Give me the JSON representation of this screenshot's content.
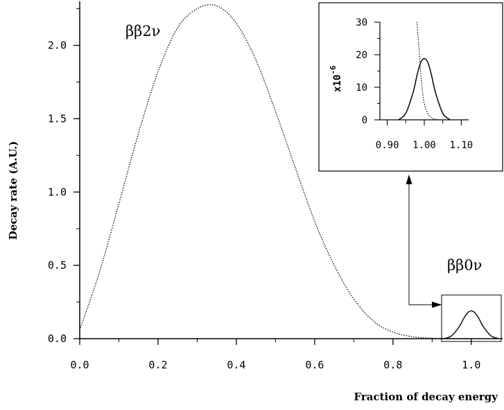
{
  "chart_data": {
    "type": "line",
    "xlabel": "Fraction of decay energy",
    "ylabel": "Decay rate (A.U.)",
    "xlim": [
      0.0,
      1.08
    ],
    "ylim": [
      0.0,
      2.3
    ],
    "x_ticks": [
      0.0,
      0.2,
      0.4,
      0.6,
      0.8,
      1.0
    ],
    "x_tick_labels": [
      "0.0",
      "0.2",
      "0.4",
      "0.6",
      "0.8",
      "1.0"
    ],
    "y_ticks": [
      0.0,
      0.5,
      1.0,
      1.5,
      2.0
    ],
    "y_tick_labels": [
      "0.0",
      "0.5",
      "1.0",
      "1.5",
      "2.0"
    ],
    "grid": false,
    "annotations": [
      "ββ2ν",
      "ββ0ν"
    ],
    "series": [
      {
        "name": "ββ2ν",
        "style": "dotted",
        "x": [
          0.0,
          0.05,
          0.1,
          0.15,
          0.2,
          0.25,
          0.3,
          0.35,
          0.4,
          0.45,
          0.5,
          0.55,
          0.6,
          0.65,
          0.7,
          0.75,
          0.8,
          0.85,
          0.9,
          0.95,
          1.0
        ],
        "y": [
          0.06,
          0.45,
          0.92,
          1.4,
          1.82,
          2.12,
          2.25,
          2.27,
          2.15,
          1.9,
          1.55,
          1.17,
          0.8,
          0.5,
          0.27,
          0.12,
          0.045,
          0.013,
          0.003,
          0.001,
          0.0
        ]
      },
      {
        "name": "ββ0ν",
        "style": "solid",
        "x": [
          0.93,
          0.95,
          0.97,
          0.98,
          0.99,
          1.0,
          1.01,
          1.02,
          1.03,
          1.05,
          1.07
        ],
        "y": [
          0.0,
          0.02,
          0.085,
          0.135,
          0.175,
          0.19,
          0.175,
          0.135,
          0.085,
          0.02,
          0.0
        ]
      }
    ],
    "inset": {
      "xlim": [
        0.88,
        1.12
      ],
      "ylim": [
        0,
        30
      ],
      "x_ticks": [
        0.9,
        1.0,
        1.1
      ],
      "x_tick_labels": [
        "0.90",
        "1.00",
        "1.10"
      ],
      "y_ticks": [
        0,
        10,
        20,
        30
      ],
      "y_tick_labels": [
        "0",
        "10",
        "20",
        "30"
      ],
      "ylabel": "x10",
      "ylabel_exponent": "-6",
      "series": [
        {
          "name": "ββ2ν",
          "style": "dotted",
          "x": [
            0.98,
            0.985,
            0.99,
            0.995,
            1.0,
            1.01,
            1.02,
            1.03,
            1.04
          ],
          "y": [
            30,
            23,
            15,
            9,
            5,
            1.8,
            0.6,
            0.15,
            0.0
          ]
        },
        {
          "name": "ββ0ν",
          "style": "solid",
          "x": [
            0.93,
            0.95,
            0.97,
            0.98,
            0.99,
            1.0,
            1.01,
            1.02,
            1.03,
            1.05,
            1.07
          ],
          "y": [
            0.0,
            2.0,
            8.5,
            13.5,
            17.5,
            18.8,
            17.5,
            13.5,
            8.5,
            2.0,
            0.0
          ]
        }
      ]
    }
  }
}
